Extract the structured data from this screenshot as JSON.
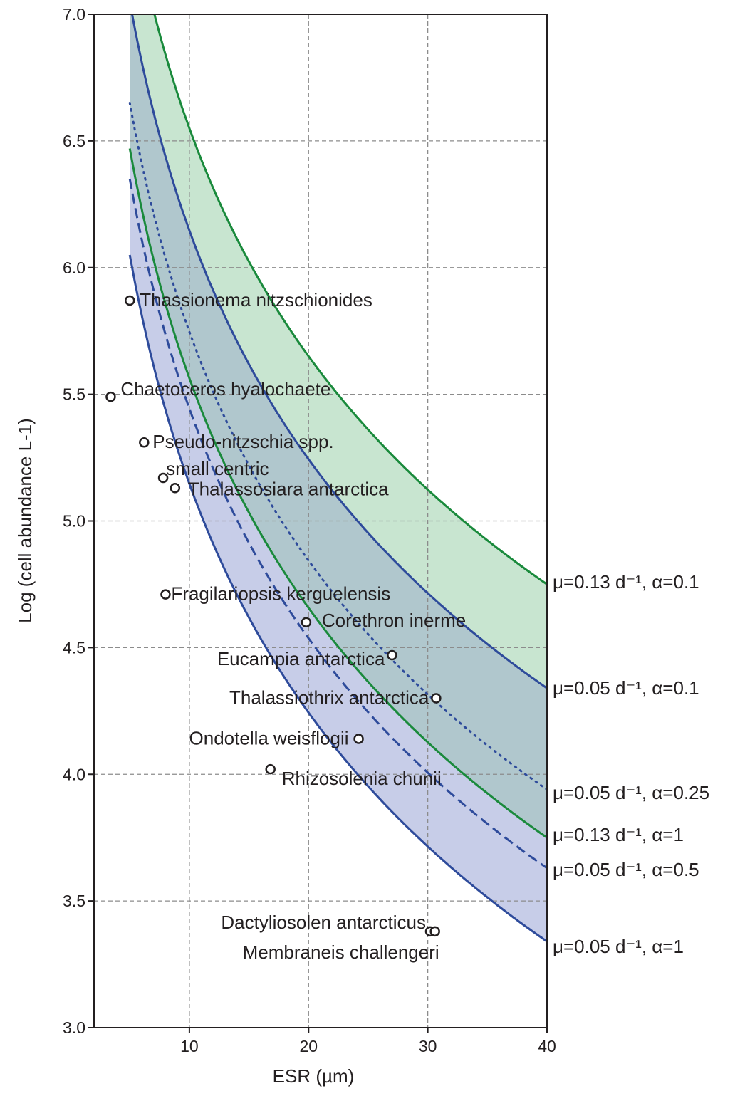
{
  "chart_data": {
    "type": "line",
    "title": "",
    "xlabel": "ESR (µm)",
    "ylabel": "Log (cell abundance L-1)",
    "xlim": [
      2,
      40
    ],
    "ylim": [
      3.0,
      7.0
    ],
    "xticks": [
      10,
      20,
      30,
      40
    ],
    "yticks": [
      3.0,
      3.5,
      4.0,
      4.5,
      5.0,
      5.5,
      6.0,
      6.5,
      7.0
    ],
    "xtick_labels": [
      "10",
      "20",
      "30",
      "40"
    ],
    "ytick_labels": [
      "3.0",
      "3.5",
      "4.0",
      "4.5",
      "5.0",
      "5.5",
      "6.0",
      "6.5",
      "7.0"
    ],
    "grid": true,
    "curves": [
      {
        "label": "μ=0.13 d⁻¹, α=0.1",
        "color": "#1a8a3c",
        "style": "solid",
        "x": [
          5,
          40
        ],
        "y": [
          7.45,
          4.75
        ]
      },
      {
        "label": "μ=0.05 d⁻¹, α=0.1",
        "color": "#2e4b9b",
        "style": "solid",
        "x": [
          5,
          40
        ],
        "y": [
          7.05,
          4.34
        ]
      },
      {
        "label": "μ=0.05 d⁻¹, α=0.25",
        "color": "#2e4b9b",
        "style": "dotted",
        "x": [
          5,
          40
        ],
        "y": [
          6.65,
          3.94
        ]
      },
      {
        "label": "μ=0.13 d⁻¹, α=1",
        "color": "#1a8a3c",
        "style": "solid",
        "x": [
          5,
          40
        ],
        "y": [
          6.47,
          3.75
        ]
      },
      {
        "label": "μ=0.05 d⁻¹, α=0.5",
        "color": "#2e4b9b",
        "style": "dashed",
        "x": [
          5,
          40
        ],
        "y": [
          6.35,
          3.63
        ]
      },
      {
        "label": "μ=0.05 d⁻¹, α=1",
        "color": "#2e4b9b",
        "style": "solid",
        "x": [
          5,
          40
        ],
        "y": [
          6.05,
          3.34
        ]
      }
    ],
    "bands": [
      {
        "between": [
          "μ=0.13 d⁻¹, α=0.1",
          "μ=0.13 d⁻¹, α=1"
        ],
        "color": "#c8e5d0"
      },
      {
        "between": [
          "μ=0.05 d⁻¹, α=0.1",
          "μ=0.05 d⁻¹, α=1"
        ],
        "color": "#c7cde8"
      }
    ],
    "points": [
      {
        "name": "Thassionema nitzschionides",
        "x": 5.0,
        "y": 5.87
      },
      {
        "name": "Chaetoceros hyalochaete",
        "x": 3.4,
        "y": 5.49
      },
      {
        "name": "Pseudo-nitzschia spp.",
        "x": 6.2,
        "y": 5.31
      },
      {
        "name": "small centric",
        "x": 7.8,
        "y": 5.17
      },
      {
        "name": "Thalassosiara antarctica",
        "x": 8.8,
        "y": 5.13
      },
      {
        "name": "Fragilariopsis kerguelensis",
        "x": 8.0,
        "y": 4.71
      },
      {
        "name": "Corethron inerme",
        "x": 19.8,
        "y": 4.6
      },
      {
        "name": "Eucampia antarctica",
        "x": 27.0,
        "y": 4.47
      },
      {
        "name": "Thalassiothrix antarctica",
        "x": 30.7,
        "y": 4.3
      },
      {
        "name": "Ondotella weisflogii",
        "x": 24.2,
        "y": 4.14
      },
      {
        "name": "Rhizosolenia chunii",
        "x": 16.8,
        "y": 4.02
      },
      {
        "name": "Dactyliosolen antarcticus",
        "x": 30.2,
        "y": 3.38
      },
      {
        "name": "Membraneis challengeri",
        "x": 30.6,
        "y": 3.38
      }
    ]
  }
}
